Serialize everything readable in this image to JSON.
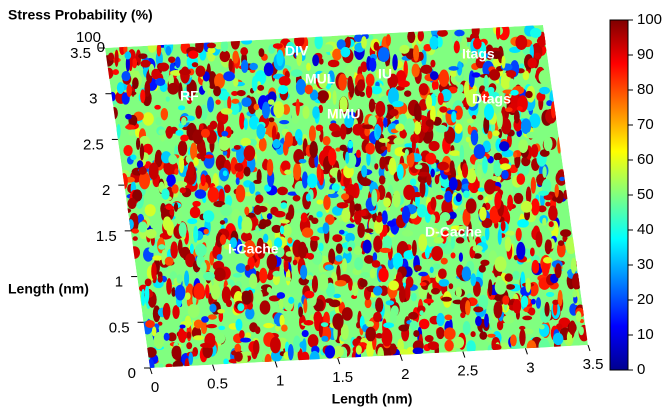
{
  "chart_data": {
    "type": "surface",
    "title": "Stress Probability (%)",
    "x_label": "Length (nm)",
    "y_label": "Length (nm)",
    "xlim": [
      0,
      3.5
    ],
    "xticks": [
      0,
      0.5,
      1,
      1.5,
      2,
      2.5,
      3,
      3.5
    ],
    "ylim": [
      0,
      3.5
    ],
    "yticks": [
      0,
      0.5,
      1,
      1.5,
      2,
      2.5,
      3,
      3.5
    ],
    "zlim": [
      0,
      100
    ],
    "zticks": [
      0,
      100
    ],
    "colormap": "jet",
    "colorbar": {
      "lim": [
        0,
        100
      ],
      "ticks": [
        0,
        10,
        20,
        30,
        40,
        50,
        60,
        70,
        80,
        90,
        100
      ]
    },
    "annotations": [
      "DIV",
      "MUL",
      "IU",
      "Itags",
      "RF",
      "MMU",
      "Dtags",
      "I-Cache",
      "D-Cache"
    ]
  }
}
